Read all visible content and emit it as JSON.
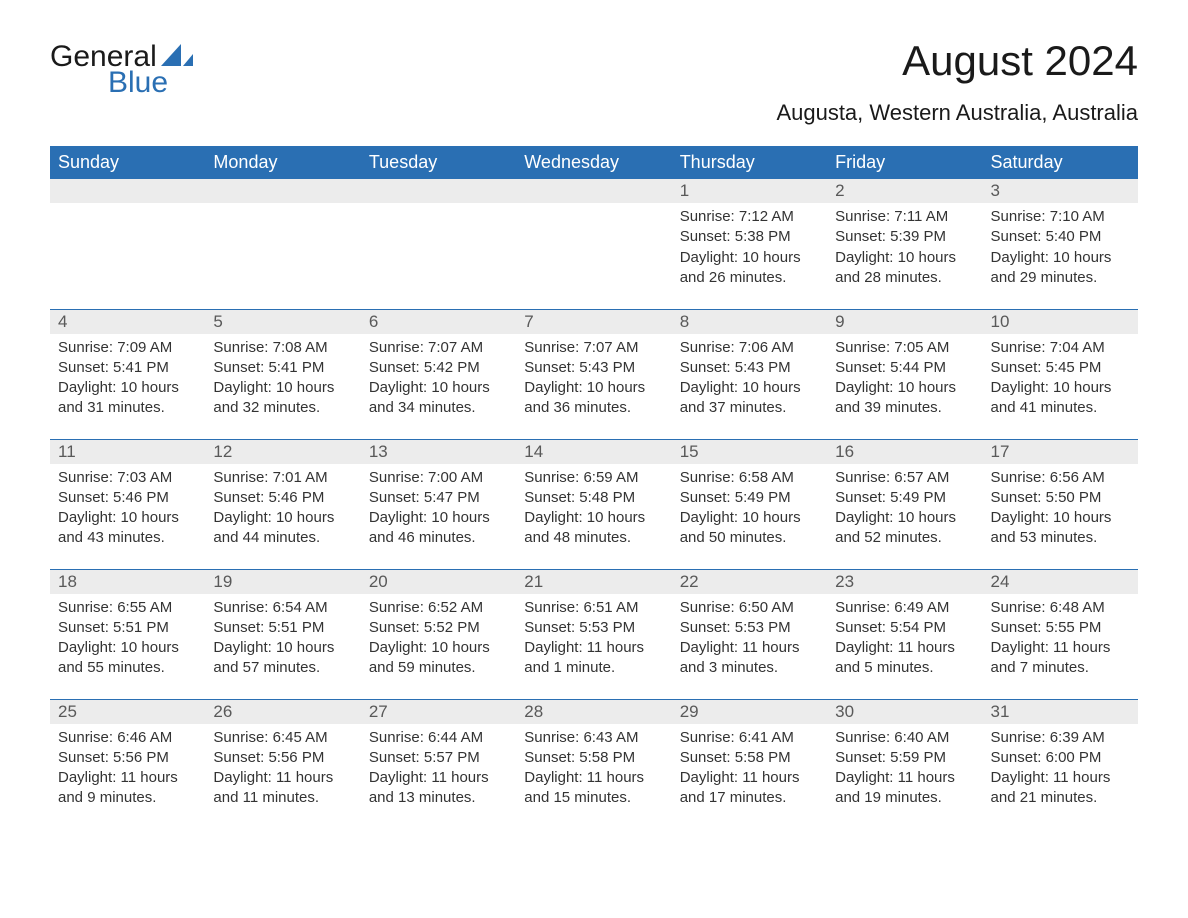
{
  "logo": {
    "general": "General",
    "blue": "Blue"
  },
  "title": "August 2024",
  "location": "Augusta, Western Australia, Australia",
  "colors": {
    "header_bg": "#2a6fb3",
    "header_text": "#ffffff",
    "daynum_bg": "#ececec",
    "daynum_text": "#595959",
    "body_bg": "#ffffff",
    "text": "#333333",
    "logo_blue": "#2a6fb3"
  },
  "day_headers": [
    "Sunday",
    "Monday",
    "Tuesday",
    "Wednesday",
    "Thursday",
    "Friday",
    "Saturday"
  ],
  "weeks": [
    [
      null,
      null,
      null,
      null,
      {
        "n": "1",
        "sunrise": "Sunrise: 7:12 AM",
        "sunset": "Sunset: 5:38 PM",
        "daylight": "Daylight: 10 hours and 26 minutes."
      },
      {
        "n": "2",
        "sunrise": "Sunrise: 7:11 AM",
        "sunset": "Sunset: 5:39 PM",
        "daylight": "Daylight: 10 hours and 28 minutes."
      },
      {
        "n": "3",
        "sunrise": "Sunrise: 7:10 AM",
        "sunset": "Sunset: 5:40 PM",
        "daylight": "Daylight: 10 hours and 29 minutes."
      }
    ],
    [
      {
        "n": "4",
        "sunrise": "Sunrise: 7:09 AM",
        "sunset": "Sunset: 5:41 PM",
        "daylight": "Daylight: 10 hours and 31 minutes."
      },
      {
        "n": "5",
        "sunrise": "Sunrise: 7:08 AM",
        "sunset": "Sunset: 5:41 PM",
        "daylight": "Daylight: 10 hours and 32 minutes."
      },
      {
        "n": "6",
        "sunrise": "Sunrise: 7:07 AM",
        "sunset": "Sunset: 5:42 PM",
        "daylight": "Daylight: 10 hours and 34 minutes."
      },
      {
        "n": "7",
        "sunrise": "Sunrise: 7:07 AM",
        "sunset": "Sunset: 5:43 PM",
        "daylight": "Daylight: 10 hours and 36 minutes."
      },
      {
        "n": "8",
        "sunrise": "Sunrise: 7:06 AM",
        "sunset": "Sunset: 5:43 PM",
        "daylight": "Daylight: 10 hours and 37 minutes."
      },
      {
        "n": "9",
        "sunrise": "Sunrise: 7:05 AM",
        "sunset": "Sunset: 5:44 PM",
        "daylight": "Daylight: 10 hours and 39 minutes."
      },
      {
        "n": "10",
        "sunrise": "Sunrise: 7:04 AM",
        "sunset": "Sunset: 5:45 PM",
        "daylight": "Daylight: 10 hours and 41 minutes."
      }
    ],
    [
      {
        "n": "11",
        "sunrise": "Sunrise: 7:03 AM",
        "sunset": "Sunset: 5:46 PM",
        "daylight": "Daylight: 10 hours and 43 minutes."
      },
      {
        "n": "12",
        "sunrise": "Sunrise: 7:01 AM",
        "sunset": "Sunset: 5:46 PM",
        "daylight": "Daylight: 10 hours and 44 minutes."
      },
      {
        "n": "13",
        "sunrise": "Sunrise: 7:00 AM",
        "sunset": "Sunset: 5:47 PM",
        "daylight": "Daylight: 10 hours and 46 minutes."
      },
      {
        "n": "14",
        "sunrise": "Sunrise: 6:59 AM",
        "sunset": "Sunset: 5:48 PM",
        "daylight": "Daylight: 10 hours and 48 minutes."
      },
      {
        "n": "15",
        "sunrise": "Sunrise: 6:58 AM",
        "sunset": "Sunset: 5:49 PM",
        "daylight": "Daylight: 10 hours and 50 minutes."
      },
      {
        "n": "16",
        "sunrise": "Sunrise: 6:57 AM",
        "sunset": "Sunset: 5:49 PM",
        "daylight": "Daylight: 10 hours and 52 minutes."
      },
      {
        "n": "17",
        "sunrise": "Sunrise: 6:56 AM",
        "sunset": "Sunset: 5:50 PM",
        "daylight": "Daylight: 10 hours and 53 minutes."
      }
    ],
    [
      {
        "n": "18",
        "sunrise": "Sunrise: 6:55 AM",
        "sunset": "Sunset: 5:51 PM",
        "daylight": "Daylight: 10 hours and 55 minutes."
      },
      {
        "n": "19",
        "sunrise": "Sunrise: 6:54 AM",
        "sunset": "Sunset: 5:51 PM",
        "daylight": "Daylight: 10 hours and 57 minutes."
      },
      {
        "n": "20",
        "sunrise": "Sunrise: 6:52 AM",
        "sunset": "Sunset: 5:52 PM",
        "daylight": "Daylight: 10 hours and 59 minutes."
      },
      {
        "n": "21",
        "sunrise": "Sunrise: 6:51 AM",
        "sunset": "Sunset: 5:53 PM",
        "daylight": "Daylight: 11 hours and 1 minute."
      },
      {
        "n": "22",
        "sunrise": "Sunrise: 6:50 AM",
        "sunset": "Sunset: 5:53 PM",
        "daylight": "Daylight: 11 hours and 3 minutes."
      },
      {
        "n": "23",
        "sunrise": "Sunrise: 6:49 AM",
        "sunset": "Sunset: 5:54 PM",
        "daylight": "Daylight: 11 hours and 5 minutes."
      },
      {
        "n": "24",
        "sunrise": "Sunrise: 6:48 AM",
        "sunset": "Sunset: 5:55 PM",
        "daylight": "Daylight: 11 hours and 7 minutes."
      }
    ],
    [
      {
        "n": "25",
        "sunrise": "Sunrise: 6:46 AM",
        "sunset": "Sunset: 5:56 PM",
        "daylight": "Daylight: 11 hours and 9 minutes."
      },
      {
        "n": "26",
        "sunrise": "Sunrise: 6:45 AM",
        "sunset": "Sunset: 5:56 PM",
        "daylight": "Daylight: 11 hours and 11 minutes."
      },
      {
        "n": "27",
        "sunrise": "Sunrise: 6:44 AM",
        "sunset": "Sunset: 5:57 PM",
        "daylight": "Daylight: 11 hours and 13 minutes."
      },
      {
        "n": "28",
        "sunrise": "Sunrise: 6:43 AM",
        "sunset": "Sunset: 5:58 PM",
        "daylight": "Daylight: 11 hours and 15 minutes."
      },
      {
        "n": "29",
        "sunrise": "Sunrise: 6:41 AM",
        "sunset": "Sunset: 5:58 PM",
        "daylight": "Daylight: 11 hours and 17 minutes."
      },
      {
        "n": "30",
        "sunrise": "Sunrise: 6:40 AM",
        "sunset": "Sunset: 5:59 PM",
        "daylight": "Daylight: 11 hours and 19 minutes."
      },
      {
        "n": "31",
        "sunrise": "Sunrise: 6:39 AM",
        "sunset": "Sunset: 6:00 PM",
        "daylight": "Daylight: 11 hours and 21 minutes."
      }
    ]
  ]
}
